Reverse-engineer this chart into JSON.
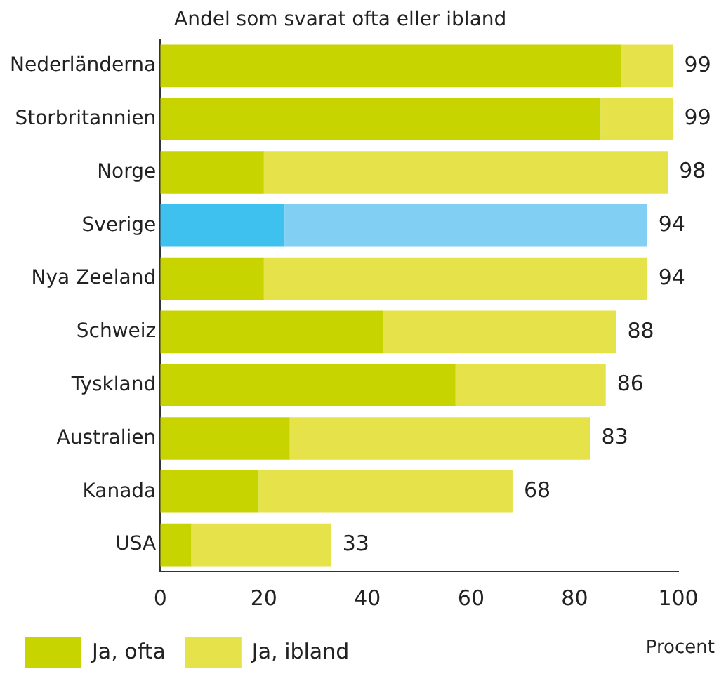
{
  "chart_data": {
    "type": "bar",
    "orientation": "horizontal",
    "stacked": true,
    "title": "Andel som svarat ofta eller ibland",
    "xlabel": "Procent",
    "categories": [
      "Nederländerna",
      "Storbritannien",
      "Norge",
      "Sverige",
      "Nya Zeeland",
      "Schweiz",
      "Tyskland",
      "Australien",
      "Kanada",
      "USA"
    ],
    "series": [
      {
        "name": "Ja, ofta",
        "color": "#c8d400",
        "colors": [
          "#c8d400",
          "#c8d400",
          "#c8d400",
          "#3fc1f0",
          "#c8d400",
          "#c8d400",
          "#c8d400",
          "#c8d400",
          "#c8d400",
          "#c8d400"
        ],
        "values": [
          89,
          85,
          20,
          24,
          20,
          43,
          57,
          25,
          19,
          6
        ]
      },
      {
        "name": "Ja, ibland",
        "color": "#e6e24a",
        "colors": [
          "#e6e24a",
          "#e6e24a",
          "#e6e24a",
          "#82cff4",
          "#e6e24a",
          "#e6e24a",
          "#e6e24a",
          "#e6e24a",
          "#e6e24a",
          "#e6e24a"
        ],
        "values": [
          10,
          14,
          78,
          70,
          74,
          45,
          29,
          58,
          49,
          27
        ]
      }
    ],
    "totals": [
      "99",
      "99",
      "98",
      "94",
      "94",
      "88",
      "86",
      "83",
      "68",
      "33"
    ],
    "xlim": [
      0,
      100
    ],
    "xticks": [
      0,
      20,
      40,
      60,
      80,
      100
    ],
    "grid": false,
    "legend": "bottom left"
  }
}
